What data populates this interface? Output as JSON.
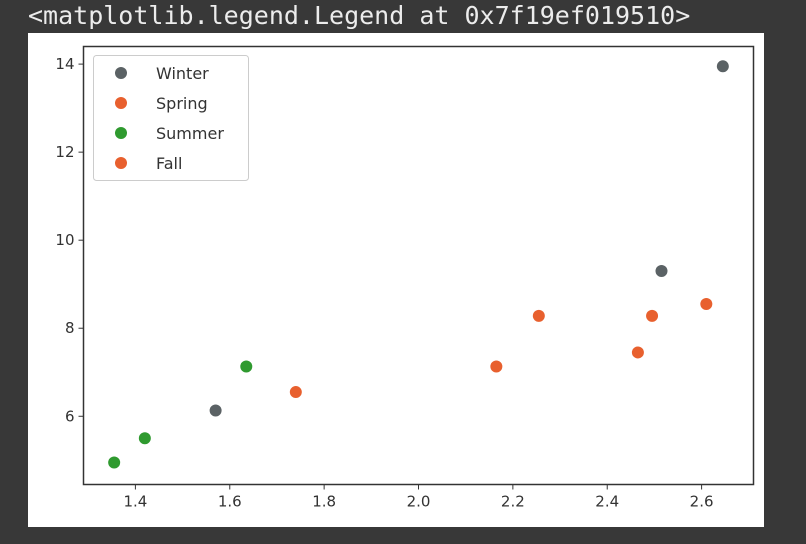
{
  "output_repr": "<matplotlib.legend.Legend at 0x7f19ef019510>",
  "chart_data": {
    "type": "scatter",
    "title": "",
    "xlabel": "",
    "ylabel": "",
    "xlim": [
      1.29,
      2.71
    ],
    "ylim": [
      4.45,
      14.4
    ],
    "x_ticks": [
      1.4,
      1.6,
      1.8,
      2.0,
      2.2,
      2.4,
      2.6
    ],
    "x_tick_labels": [
      "1.4",
      "1.6",
      "1.8",
      "2.0",
      "2.2",
      "2.4",
      "2.6"
    ],
    "y_ticks": [
      6,
      8,
      10,
      12,
      14
    ],
    "y_tick_labels": [
      "6",
      "8",
      "10",
      "12",
      "14"
    ],
    "grid": false,
    "legend_position": "upper-left",
    "series": [
      {
        "name": "Winter",
        "color": "#5b6265",
        "points": [
          [
            1.57,
            6.13
          ],
          [
            2.515,
            9.3
          ],
          [
            2.645,
            13.95
          ]
        ]
      },
      {
        "name": "Spring",
        "color": "#e8602e",
        "points": [
          [
            1.74,
            6.55
          ],
          [
            2.255,
            8.28
          ],
          [
            2.495,
            8.28
          ],
          [
            2.61,
            8.55
          ]
        ]
      },
      {
        "name": "Summer",
        "color": "#2f9a2f",
        "points": [
          [
            1.355,
            4.95
          ],
          [
            1.42,
            5.5
          ],
          [
            1.635,
            7.13
          ]
        ]
      },
      {
        "name": "Fall",
        "color": "#e8602e",
        "points": [
          [
            2.165,
            7.13
          ],
          [
            2.465,
            7.45
          ]
        ]
      }
    ]
  }
}
